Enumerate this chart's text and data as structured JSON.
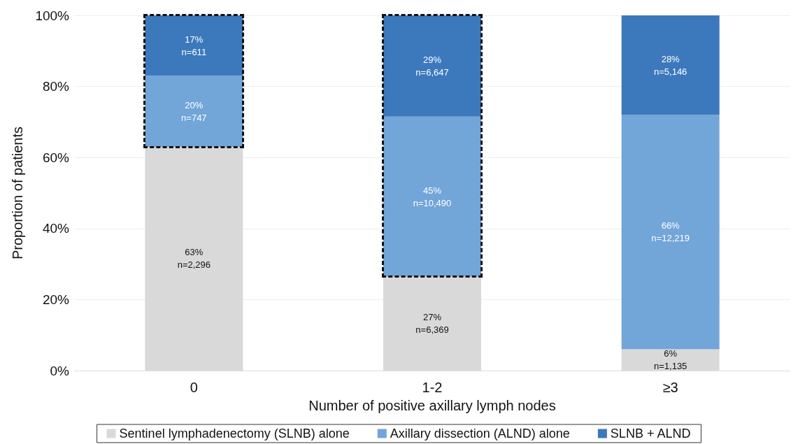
{
  "chart_data": {
    "type": "bar",
    "stacked": true,
    "xlabel": "Number of positive axillary lymph nodes",
    "ylabel": "Proportion of patients",
    "categories": [
      "0",
      "1-2",
      "≥3"
    ],
    "series": [
      {
        "name": "Sentinel lymphadenectomy (SLNB) alone",
        "color": "#d9d9d9",
        "values": [
          63,
          26.5,
          6
        ],
        "value_labels": [
          "63%\nn=2,296",
          "27%\nn=6,369",
          "6%\nn=1,135"
        ]
      },
      {
        "name": "Axillary dissection (ALND) alone",
        "color": "#72a5d8",
        "values": [
          20,
          45,
          66
        ],
        "value_labels": [
          "20%\nn=747",
          "45%\nn=10,490",
          "66%\nn=12,219"
        ]
      },
      {
        "name": "SLNB + ALND",
        "color": "#3c78bc",
        "values": [
          17,
          28.5,
          28
        ],
        "value_labels": [
          "17%\nn=611",
          "29%\nn=6,647",
          "28%\nn=5,146"
        ]
      }
    ],
    "ylim": [
      0,
      100
    ],
    "yticks": [
      {
        "value": 0,
        "label": "0%"
      },
      {
        "value": 20,
        "label": "20%"
      },
      {
        "value": 40,
        "label": "40%"
      },
      {
        "value": 60,
        "label": "60%"
      },
      {
        "value": 80,
        "label": "80%"
      },
      {
        "value": 100,
        "label": "100%"
      }
    ],
    "grid": "y",
    "legend": "bottom"
  }
}
